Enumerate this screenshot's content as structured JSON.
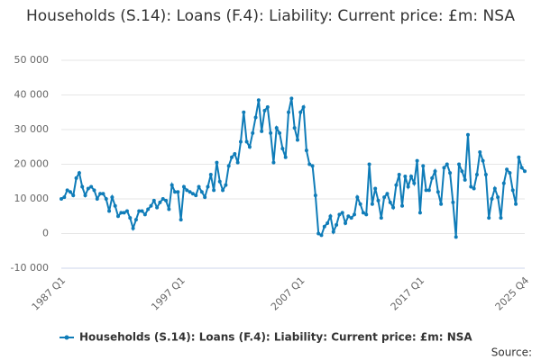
{
  "chart_data": {
    "type": "line",
    "title": "Households (S.14): Loans (F.4): Liability: Current price: £m: NSA",
    "source": "Source:",
    "categories": [
      "1987 Q1",
      null,
      null,
      null,
      null,
      null,
      null,
      null,
      null,
      null,
      null,
      null,
      null,
      null,
      null,
      null,
      null,
      null,
      null,
      null,
      null,
      null,
      null,
      null,
      null,
      null,
      null,
      null,
      null,
      null,
      null,
      null,
      null,
      null,
      null,
      null,
      null,
      null,
      null,
      null,
      "1997 Q1",
      null,
      null,
      null,
      null,
      null,
      null,
      null,
      null,
      null,
      null,
      null,
      null,
      null,
      null,
      null,
      null,
      null,
      null,
      null,
      null,
      null,
      null,
      null,
      null,
      null,
      null,
      null,
      null,
      null,
      null,
      null,
      null,
      null,
      null,
      null,
      null,
      null,
      null,
      null,
      "2007 Q1",
      null,
      null,
      null,
      null,
      null,
      null,
      null,
      null,
      null,
      null,
      null,
      null,
      null,
      null,
      null,
      null,
      null,
      null,
      null,
      null,
      null,
      null,
      null,
      null,
      null,
      null,
      null,
      null,
      null,
      null,
      null,
      null,
      null,
      null,
      null,
      null,
      null,
      null,
      null,
      "2017 Q1",
      null,
      null,
      null,
      null,
      null,
      null,
      null,
      null,
      null,
      null,
      null,
      null,
      null,
      null,
      null,
      null,
      null,
      null,
      null,
      null,
      null,
      null,
      null,
      null,
      null,
      null,
      null,
      null,
      null,
      null,
      null,
      null,
      null,
      null,
      "2025 Q4"
    ],
    "series": [
      {
        "name": "Households (S.14): Loans (F.4): Liability: Current price: £m: NSA",
        "color": "#0f7cb8",
        "values": [
          10000,
          10500,
          12500,
          12000,
          11000,
          16000,
          17500,
          13500,
          11000,
          13000,
          13500,
          12500,
          10000,
          11500,
          11500,
          10000,
          6500,
          10500,
          8000,
          5000,
          6000,
          6000,
          6500,
          4500,
          1500,
          4000,
          6500,
          6500,
          5500,
          7000,
          8000,
          9500,
          7500,
          9000,
          10000,
          9500,
          7000,
          14000,
          12000,
          12000,
          4000,
          13500,
          12500,
          12000,
          11500,
          11000,
          13500,
          12000,
          10500,
          13500,
          17000,
          12500,
          20500,
          15000,
          12500,
          14000,
          19500,
          22000,
          23000,
          20500,
          26500,
          35000,
          26500,
          25000,
          29000,
          33500,
          38500,
          29500,
          35500,
          36500,
          29000,
          20500,
          30500,
          29000,
          24500,
          22000,
          35000,
          39000,
          30500,
          27000,
          35000,
          36500,
          24000,
          20000,
          19500,
          11000,
          0,
          -500,
          2000,
          3000,
          5000,
          500,
          2500,
          5500,
          6000,
          3000,
          5000,
          4500,
          5500,
          10500,
          8500,
          6000,
          5500,
          20000,
          8500,
          13000,
          9500,
          4500,
          10500,
          11500,
          9000,
          7500,
          14000,
          17000,
          8000,
          16500,
          13500,
          16500,
          14500,
          21000,
          6000,
          19500,
          12500,
          12500,
          16000,
          18000,
          12000,
          8500,
          19000,
          20000,
          17500,
          9000,
          -1000,
          20000,
          18000,
          15500,
          28500,
          13500,
          13000,
          17000,
          23500,
          21000,
          17000,
          4500,
          10000,
          13000,
          10500,
          4500,
          14500,
          18500,
          17500,
          12500,
          8500,
          22000,
          19000,
          18000
        ]
      }
    ],
    "ylim": [
      -10000,
      50000
    ],
    "yticks": [
      {
        "value": -10000,
        "label": "-10 000"
      },
      0,
      {
        "value": 10000,
        "label": "10 000"
      },
      {
        "value": 20000,
        "label": "20 000"
      },
      {
        "value": 30000,
        "label": "30 000"
      },
      {
        "value": 40000,
        "label": "40 000"
      },
      {
        "value": 50000,
        "label": "50 000"
      }
    ],
    "grid": true
  }
}
